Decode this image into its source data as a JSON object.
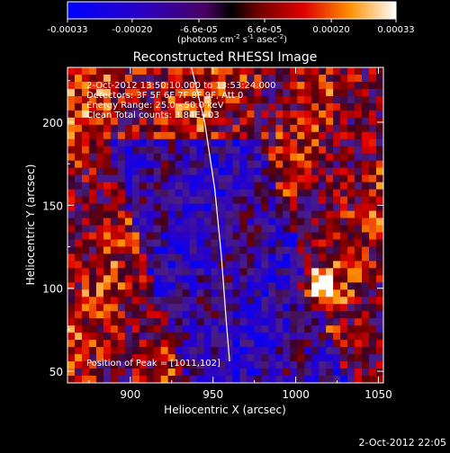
{
  "chart_data": {
    "type": "heatmap",
    "title": "Reconstructed RHESSI Image",
    "xlabel": "Heliocentric X (arcsec)",
    "ylabel": "Heliocentric Y (arcsec)",
    "xlim": [
      862,
      1053
    ],
    "ylim": [
      43,
      233
    ],
    "xticks": [
      900,
      950,
      1000,
      1050
    ],
    "yticks": [
      50,
      100,
      150,
      200
    ],
    "colorbar": {
      "min": -0.00033,
      "max": 0.00033,
      "tick_values": [
        -0.00033,
        -0.0002,
        -6.6e-05,
        6.6e-05,
        0.0002,
        0.00033
      ],
      "tick_labels": [
        "-0.00033",
        "-0.00020",
        "-6.6e-05",
        "6.6e-05",
        "0.00020",
        "0.00033"
      ],
      "unit_label": "(photons cm",
      "unit_exp1": "-2",
      "unit_mid": " s",
      "unit_exp2": "-1",
      "unit_mid2": " asec",
      "unit_exp3": "-2",
      "unit_end": ")"
    },
    "annotations": {
      "time_range": "2-Oct-2012 13:50:10.000 to 13:53:24.000",
      "detectors": "Detectors: 3F 5F 6F 7F 8F 9F, Att 0",
      "energy": "Energy Range: 25.0 - 50.0 keV",
      "clean": "Clean     Total counts: 3.84E+03",
      "peak": "Position of Peak = [1011,102]"
    },
    "peak_position": [
      1011,
      102
    ],
    "limb_curve": [
      [
        937,
        233
      ],
      [
        945,
        200
      ],
      [
        951,
        160
      ],
      [
        955,
        120
      ],
      [
        958,
        80
      ],
      [
        960,
        56
      ]
    ],
    "grid": false
  },
  "footer": {
    "timestamp": "2-Oct-2012 22:05"
  }
}
